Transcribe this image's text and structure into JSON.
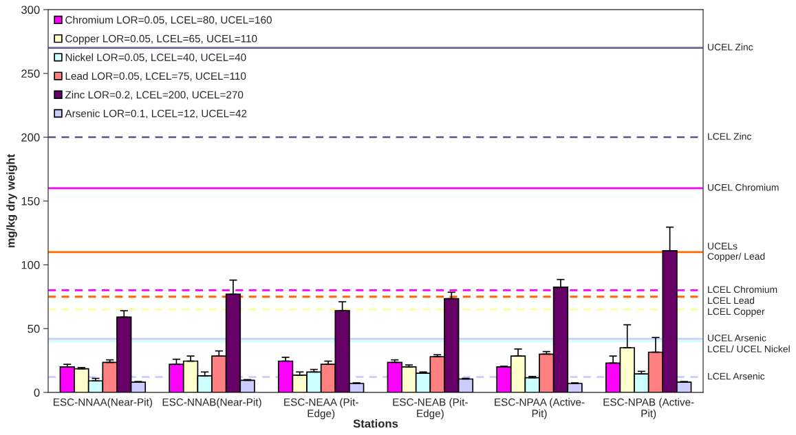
{
  "chart_data": {
    "type": "bar",
    "xlabel": "Stations",
    "ylabel": "mg/kg dry weight",
    "categories": [
      "ESC-NNAA(Near-Pit)",
      "ESC-NNAB(Near-Pit)",
      "ESC-NEAA (Pit-\nEdge)",
      "ESC-NEAB (Pit-\nEdge)",
      "ESC-NPAA (Active-\nPit)",
      "ESC-NPAB (Active-\nPit)"
    ],
    "series": [
      {
        "name": "Chromium LOR=0.05, LCEL=80, UCEL=160",
        "color": "#ff00ff",
        "values": [
          20,
          22,
          24.5,
          23.5,
          20,
          23
        ],
        "errors": [
          [
            20,
            22
          ],
          [
            22,
            26
          ],
          [
            24.5,
            27.5
          ],
          [
            23.5,
            25.5
          ],
          [
            20,
            20.5
          ],
          [
            23,
            28.5
          ]
        ]
      },
      {
        "name": "Copper LOR=0.05, LCEL=65, UCEL=110",
        "color": "#ffffcc",
        "values": [
          18.5,
          24.5,
          13.5,
          20,
          28.5,
          35
        ],
        "errors": [
          [
            18.5,
            19.5
          ],
          [
            24.5,
            28.5
          ],
          [
            13.5,
            16
          ],
          [
            20,
            21.5
          ],
          [
            28.5,
            34
          ],
          [
            35,
            53
          ]
        ]
      },
      {
        "name": "Nickel LOR=0.05, LCEL=40, UCEL=40",
        "color": "#ccffff",
        "values": [
          9,
          13,
          16,
          15,
          11.5,
          14.5
        ],
        "errors": [
          [
            9,
            11
          ],
          [
            13,
            16
          ],
          [
            16,
            18
          ],
          [
            15,
            16
          ],
          [
            11.5,
            12.5
          ],
          [
            14.5,
            16.5
          ]
        ]
      },
      {
        "name": "Lead LOR=0.05, LCEL=75, UCEL=110",
        "color": "#ff8080",
        "values": [
          23.5,
          28.5,
          22,
          28,
          30,
          31.5
        ],
        "errors": [
          [
            23.5,
            25.5
          ],
          [
            28.5,
            32.5
          ],
          [
            22,
            24.5
          ],
          [
            28,
            29.5
          ],
          [
            30,
            32
          ],
          [
            31.5,
            43
          ]
        ]
      },
      {
        "name": "Zinc LOR=0.2, LCEL=200, UCEL=270",
        "color": "#660066",
        "values": [
          59,
          77,
          64,
          73.5,
          82.5,
          111
        ],
        "errors": [
          [
            59,
            64
          ],
          [
            77,
            88
          ],
          [
            64,
            71
          ],
          [
            73.5,
            78.5
          ],
          [
            82.5,
            88.5
          ],
          [
            111,
            129.5
          ]
        ]
      },
      {
        "name": "Arsenic LOR=0.1, LCEL=12, UCEL=42",
        "color": "#ccccff",
        "values": [
          8,
          9.5,
          7,
          10.5,
          7,
          8
        ],
        "errors": [
          [
            8,
            8.5
          ],
          [
            9.5,
            10
          ],
          [
            7,
            7.5
          ],
          [
            10.5,
            11
          ],
          [
            7,
            7.5
          ],
          [
            8,
            8.5
          ]
        ]
      }
    ],
    "ylim": [
      0,
      300
    ],
    "yticks": [
      0,
      50,
      100,
      150,
      200,
      250,
      300
    ],
    "grid": false,
    "legend": "top left",
    "ref_lines": [
      {
        "axis": "y",
        "value": 270,
        "label": "UCEL Zinc",
        "color": "#666699",
        "line_style": "solid"
      },
      {
        "axis": "y",
        "value": 200,
        "label": "LCEL Zinc",
        "color": "#666699",
        "line_style": "dashed"
      },
      {
        "axis": "y",
        "value": 160,
        "label": "UCEL Chromium",
        "color": "#ff00ff",
        "line_style": "solid"
      },
      {
        "axis": "y",
        "value": 110,
        "label": null,
        "color": "#ffff99",
        "line_style": "solid"
      },
      {
        "axis": "y",
        "value": 110,
        "label": "UCELs\nCopper/ Lead",
        "color": "#ff6600",
        "line_style": "solid"
      },
      {
        "axis": "y",
        "value": 80,
        "label": "LCEL Chromium",
        "color": "#ff00ff",
        "line_style": "dashed"
      },
      {
        "axis": "y",
        "value": 75,
        "label": "LCEL Lead",
        "color": "#ff6600",
        "line_style": "dashed"
      },
      {
        "axis": "y",
        "value": 65,
        "label": "LCEL Copper",
        "color": "#ffff99",
        "line_style": "dashed"
      },
      {
        "axis": "y",
        "value": 42,
        "label": "UCEL Arsenic",
        "color": "#ccccff",
        "line_style": "solid"
      },
      {
        "axis": "y",
        "value": 40,
        "label": "LCEL/ UCEL Nickel",
        "color": "#ccffff",
        "line_style": "solid"
      },
      {
        "axis": "y",
        "value": 12,
        "label": "LCEL Arsenic",
        "color": "#ccccff",
        "line_style": "dashed"
      }
    ]
  }
}
